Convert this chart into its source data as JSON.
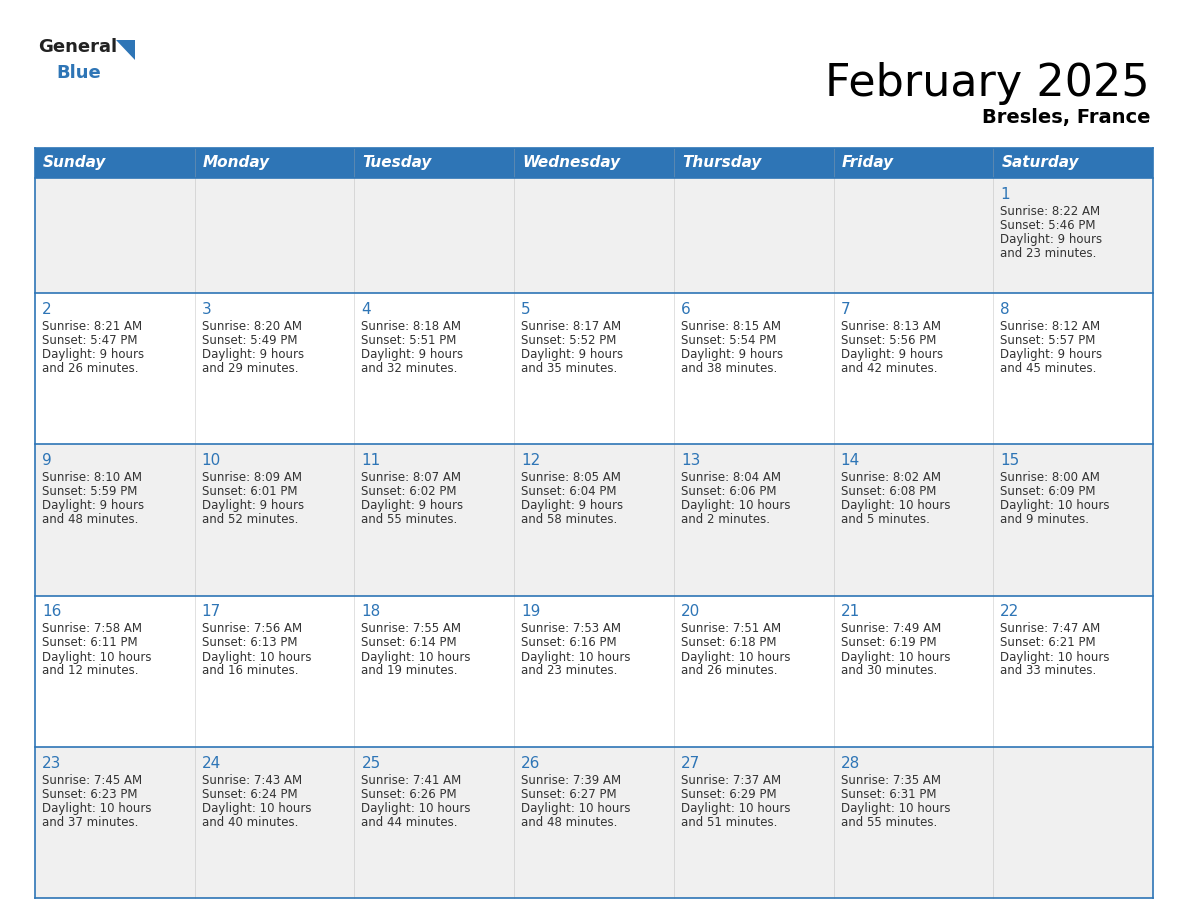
{
  "title": "February 2025",
  "subtitle": "Bresles, France",
  "header_bg": "#2E75B6",
  "header_text_color": "#FFFFFF",
  "cell_bg_row0": "#F0F0F0",
  "cell_bg_row1": "#FFFFFF",
  "cell_bg_row2": "#F0F0F0",
  "cell_bg_row3": "#FFFFFF",
  "cell_bg_row4": "#F0F0F0",
  "separator_color": "#2E75B6",
  "text_color": "#333333",
  "days_of_week": [
    "Sunday",
    "Monday",
    "Tuesday",
    "Wednesday",
    "Thursday",
    "Friday",
    "Saturday"
  ],
  "calendar_data": [
    [
      {
        "day": "",
        "sunrise": "",
        "sunset": "",
        "daylight": ""
      },
      {
        "day": "",
        "sunrise": "",
        "sunset": "",
        "daylight": ""
      },
      {
        "day": "",
        "sunrise": "",
        "sunset": "",
        "daylight": ""
      },
      {
        "day": "",
        "sunrise": "",
        "sunset": "",
        "daylight": ""
      },
      {
        "day": "",
        "sunrise": "",
        "sunset": "",
        "daylight": ""
      },
      {
        "day": "",
        "sunrise": "",
        "sunset": "",
        "daylight": ""
      },
      {
        "day": "1",
        "sunrise": "8:22 AM",
        "sunset": "5:46 PM",
        "daylight": "9 hours and 23 minutes."
      }
    ],
    [
      {
        "day": "2",
        "sunrise": "8:21 AM",
        "sunset": "5:47 PM",
        "daylight": "9 hours and 26 minutes."
      },
      {
        "day": "3",
        "sunrise": "8:20 AM",
        "sunset": "5:49 PM",
        "daylight": "9 hours and 29 minutes."
      },
      {
        "day": "4",
        "sunrise": "8:18 AM",
        "sunset": "5:51 PM",
        "daylight": "9 hours and 32 minutes."
      },
      {
        "day": "5",
        "sunrise": "8:17 AM",
        "sunset": "5:52 PM",
        "daylight": "9 hours and 35 minutes."
      },
      {
        "day": "6",
        "sunrise": "8:15 AM",
        "sunset": "5:54 PM",
        "daylight": "9 hours and 38 minutes."
      },
      {
        "day": "7",
        "sunrise": "8:13 AM",
        "sunset": "5:56 PM",
        "daylight": "9 hours and 42 minutes."
      },
      {
        "day": "8",
        "sunrise": "8:12 AM",
        "sunset": "5:57 PM",
        "daylight": "9 hours and 45 minutes."
      }
    ],
    [
      {
        "day": "9",
        "sunrise": "8:10 AM",
        "sunset": "5:59 PM",
        "daylight": "9 hours and 48 minutes."
      },
      {
        "day": "10",
        "sunrise": "8:09 AM",
        "sunset": "6:01 PM",
        "daylight": "9 hours and 52 minutes."
      },
      {
        "day": "11",
        "sunrise": "8:07 AM",
        "sunset": "6:02 PM",
        "daylight": "9 hours and 55 minutes."
      },
      {
        "day": "12",
        "sunrise": "8:05 AM",
        "sunset": "6:04 PM",
        "daylight": "9 hours and 58 minutes."
      },
      {
        "day": "13",
        "sunrise": "8:04 AM",
        "sunset": "6:06 PM",
        "daylight": "10 hours and 2 minutes."
      },
      {
        "day": "14",
        "sunrise": "8:02 AM",
        "sunset": "6:08 PM",
        "daylight": "10 hours and 5 minutes."
      },
      {
        "day": "15",
        "sunrise": "8:00 AM",
        "sunset": "6:09 PM",
        "daylight": "10 hours and 9 minutes."
      }
    ],
    [
      {
        "day": "16",
        "sunrise": "7:58 AM",
        "sunset": "6:11 PM",
        "daylight": "10 hours and 12 minutes."
      },
      {
        "day": "17",
        "sunrise": "7:56 AM",
        "sunset": "6:13 PM",
        "daylight": "10 hours and 16 minutes."
      },
      {
        "day": "18",
        "sunrise": "7:55 AM",
        "sunset": "6:14 PM",
        "daylight": "10 hours and 19 minutes."
      },
      {
        "day": "19",
        "sunrise": "7:53 AM",
        "sunset": "6:16 PM",
        "daylight": "10 hours and 23 minutes."
      },
      {
        "day": "20",
        "sunrise": "7:51 AM",
        "sunset": "6:18 PM",
        "daylight": "10 hours and 26 minutes."
      },
      {
        "day": "21",
        "sunrise": "7:49 AM",
        "sunset": "6:19 PM",
        "daylight": "10 hours and 30 minutes."
      },
      {
        "day": "22",
        "sunrise": "7:47 AM",
        "sunset": "6:21 PM",
        "daylight": "10 hours and 33 minutes."
      }
    ],
    [
      {
        "day": "23",
        "sunrise": "7:45 AM",
        "sunset": "6:23 PM",
        "daylight": "10 hours and 37 minutes."
      },
      {
        "day": "24",
        "sunrise": "7:43 AM",
        "sunset": "6:24 PM",
        "daylight": "10 hours and 40 minutes."
      },
      {
        "day": "25",
        "sunrise": "7:41 AM",
        "sunset": "6:26 PM",
        "daylight": "10 hours and 44 minutes."
      },
      {
        "day": "26",
        "sunrise": "7:39 AM",
        "sunset": "6:27 PM",
        "daylight": "10 hours and 48 minutes."
      },
      {
        "day": "27",
        "sunrise": "7:37 AM",
        "sunset": "6:29 PM",
        "daylight": "10 hours and 51 minutes."
      },
      {
        "day": "28",
        "sunrise": "7:35 AM",
        "sunset": "6:31 PM",
        "daylight": "10 hours and 55 minutes."
      },
      {
        "day": "",
        "sunrise": "",
        "sunset": "",
        "daylight": ""
      }
    ]
  ],
  "logo_general_color": "#222222",
  "logo_blue_color": "#2E75B6",
  "title_fontsize": 32,
  "subtitle_fontsize": 14,
  "day_header_fontsize": 11,
  "day_number_fontsize": 11,
  "cell_text_fontsize": 8.5
}
